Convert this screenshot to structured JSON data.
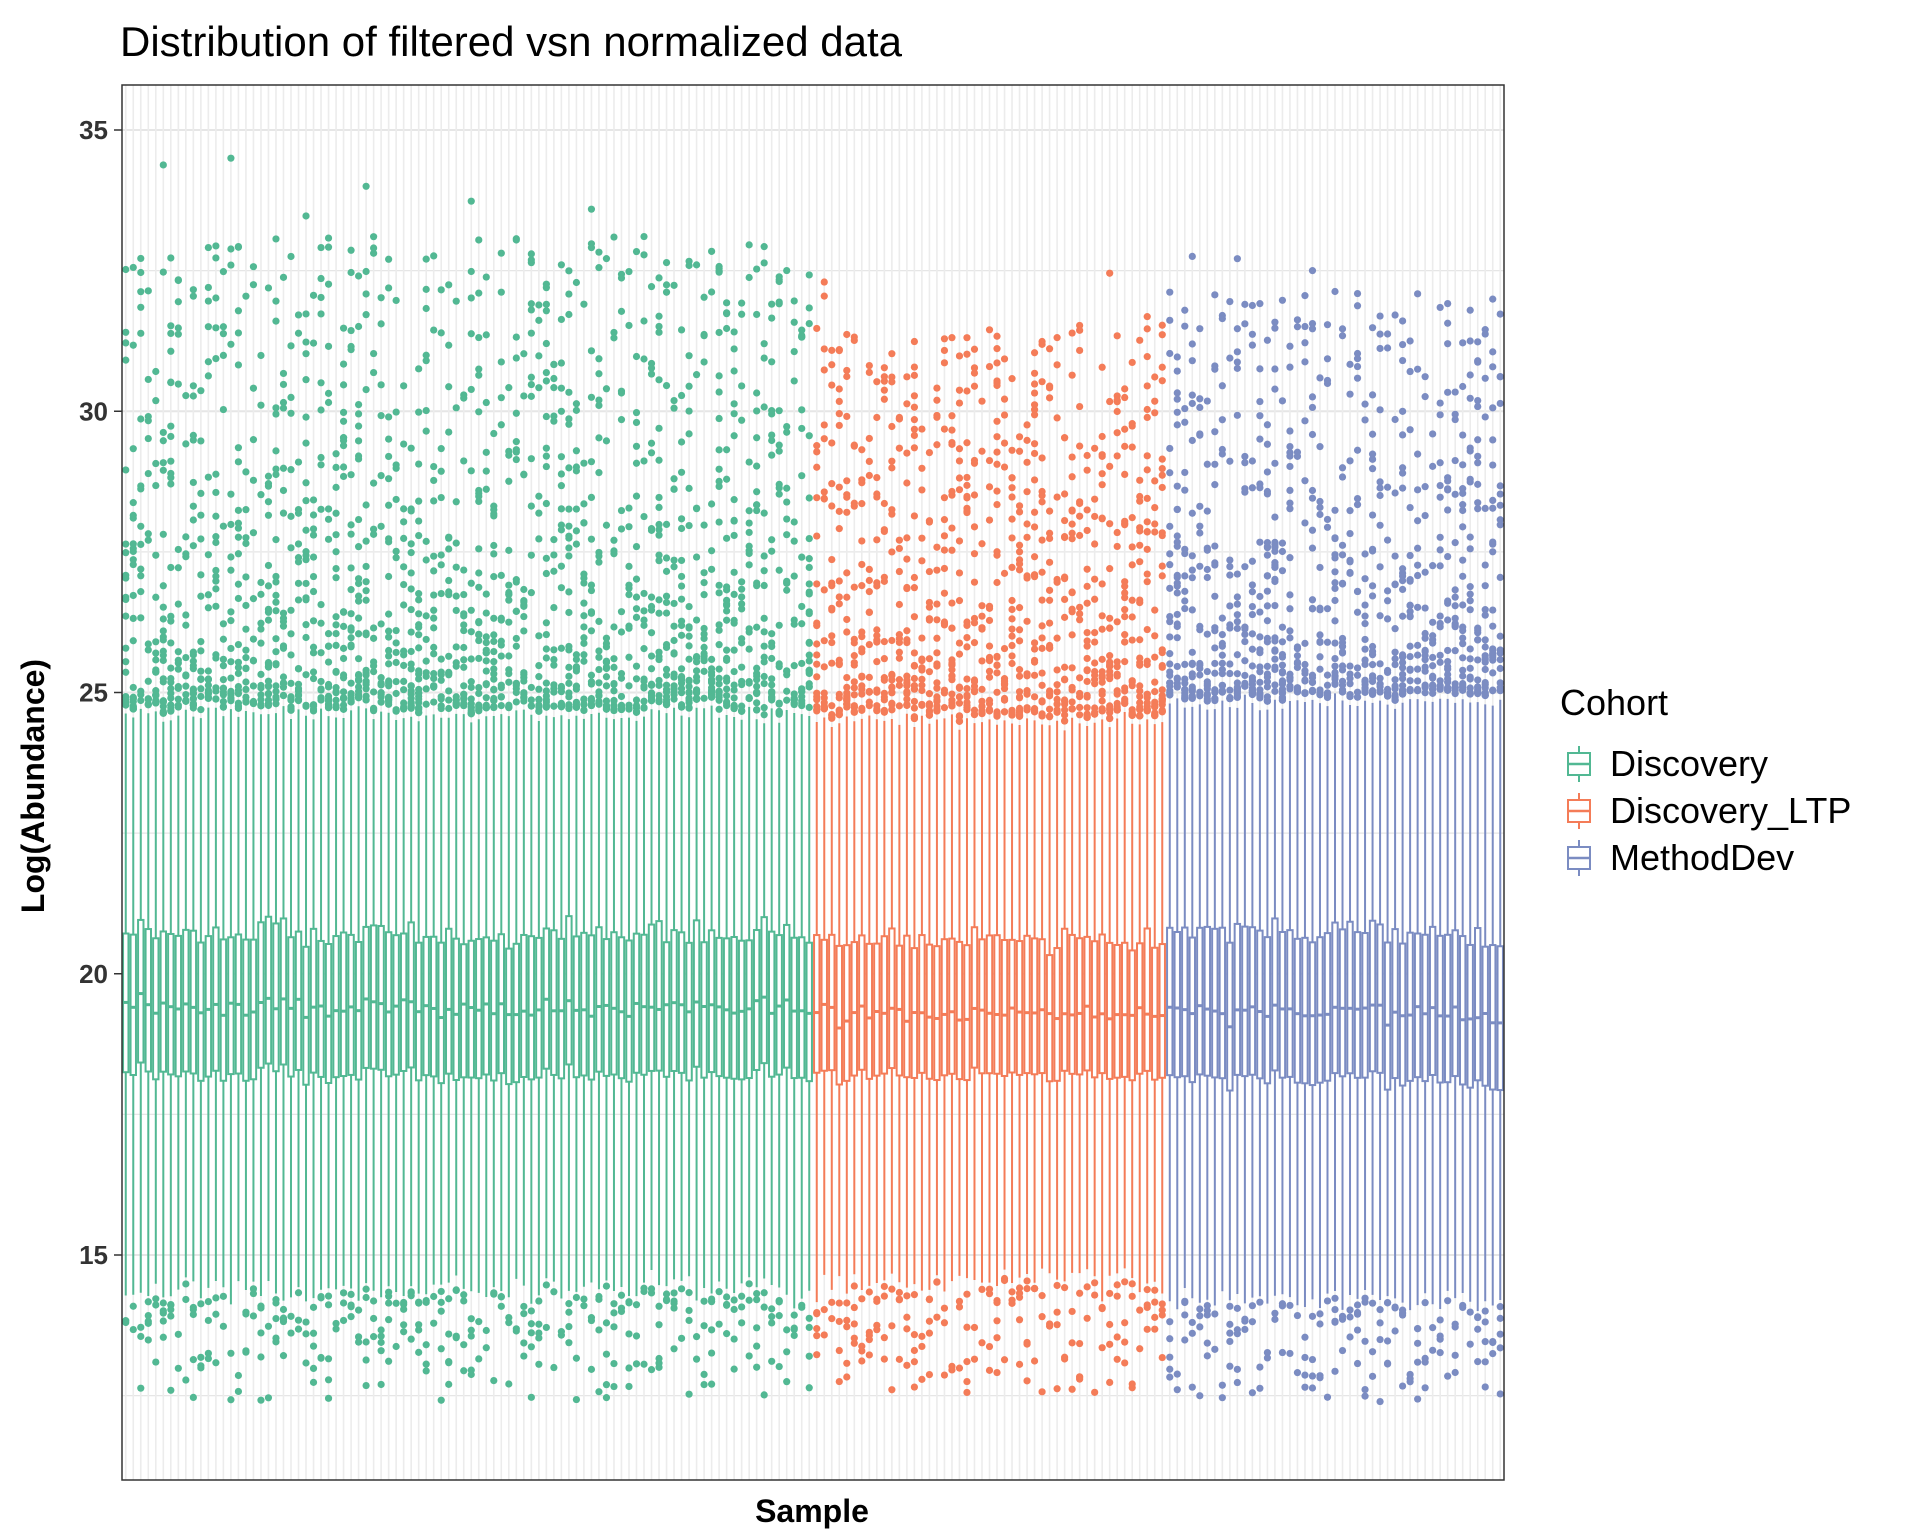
{
  "chart_data": {
    "type": "box",
    "title": "Distribution of filtered vsn normalized data",
    "xlabel": "Sample",
    "ylabel": "Log(Abundance)",
    "ylim": [
      11,
      35.8
    ],
    "yticks": [
      15,
      20,
      25,
      30,
      35
    ],
    "x_tick_labels_shown": false,
    "grid": true,
    "legend": {
      "title": "Cohort",
      "position": "right"
    },
    "series": [
      {
        "name": "Discovery",
        "color": "#52B893",
        "n_samples": 92,
        "box_summary": {
          "median": 19.4,
          "q1": 18.2,
          "q3": 20.7,
          "whisker_low": 14.4,
          "whisker_high": 24.6
        },
        "outlier_range": {
          "low": [
            12.2,
            15.9
          ],
          "high": [
            24.8,
            34.6
          ]
        }
      },
      {
        "name": "Discovery_LTP",
        "color": "#F47C58",
        "n_samples": 47,
        "box_summary": {
          "median": 19.3,
          "q1": 18.2,
          "q3": 20.6,
          "whisker_low": 14.5,
          "whisker_high": 24.5
        },
        "outlier_range": {
          "low": [
            12.3,
            14.7
          ],
          "high": [
            24.7,
            32.7
          ]
        }
      },
      {
        "name": "MethodDev",
        "color": "#7B8CC2",
        "n_samples": 45,
        "box_summary": {
          "median": 19.3,
          "q1": 18.1,
          "q3": 20.7,
          "whisker_low": 14.2,
          "whisker_high": 24.8
        },
        "outlier_range": {
          "low": [
            12.2,
            14.7
          ],
          "high": [
            25.0,
            33.4
          ]
        }
      }
    ]
  }
}
